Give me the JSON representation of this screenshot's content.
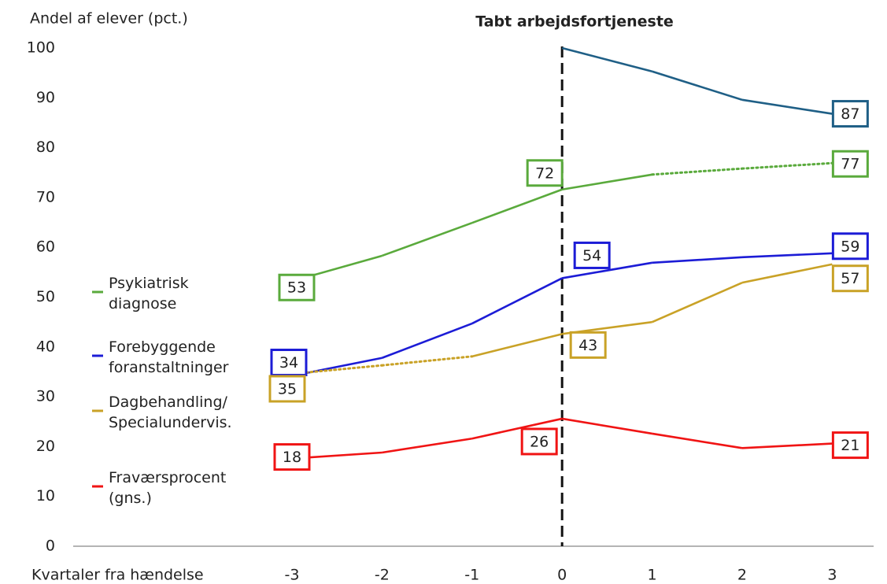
{
  "chart_data": {
    "type": "line",
    "title": "Tabt arbejdsfortjeneste",
    "y_label": "Andel af elever (pct.)",
    "x_label": "Kvartaler fra hændelse",
    "x": [
      -3,
      -2,
      -1,
      0,
      1,
      2,
      3
    ],
    "xlim": [
      -5.43,
      3.46
    ],
    "xticks": [
      -3,
      -2,
      -1,
      0,
      1,
      2,
      3
    ],
    "ylim": [
      0,
      100
    ],
    "yticks": [
      0,
      10,
      20,
      30,
      40,
      50,
      60,
      70,
      80,
      90,
      100
    ],
    "vline_x": 0,
    "series": [
      {
        "color": "#1f5f86",
        "values": [
          null,
          null,
          null,
          100,
          95.3,
          89.6,
          86.8
        ],
        "value_labels": [
          null,
          null,
          null,
          null,
          null,
          null,
          "87"
        ],
        "line_styles": [
          "solid",
          "solid",
          "solid",
          "solid",
          "solid",
          "solid"
        ]
      },
      {
        "name": "Psykiatrisk diagnose",
        "color": "#5aaa3c",
        "values": [
          53.2,
          58.3,
          64.9,
          71.6,
          74.6,
          75.8,
          76.9
        ],
        "value_labels": [
          "53",
          null,
          null,
          "72",
          null,
          null,
          "77"
        ],
        "line_styles": [
          "solid",
          "solid",
          "solid",
          "solid",
          "dotted",
          "dotted"
        ]
      },
      {
        "name": "Forebyggende foranstaltninger",
        "color": "#1c1cd6",
        "values": [
          34.2,
          37.8,
          44.7,
          53.8,
          56.9,
          58.0,
          58.8
        ],
        "value_labels": [
          "34",
          null,
          null,
          "54",
          null,
          null,
          "59"
        ],
        "line_styles": [
          "solid",
          "solid",
          "solid",
          "solid",
          "solid",
          "solid"
        ]
      },
      {
        "name": "Dagbehandling/ Specialundervis.",
        "color": "#c9a227",
        "values": [
          34.6,
          36.3,
          38.1,
          42.6,
          45.0,
          52.9,
          56.6
        ],
        "value_labels": [
          "35",
          null,
          null,
          "43",
          null,
          null,
          "57"
        ],
        "line_styles": [
          "dotted",
          "dotted",
          "solid",
          "solid",
          "solid",
          "solid"
        ]
      },
      {
        "name": "Fraværsprocent (gns.)",
        "color": "#f01414",
        "values": [
          17.6,
          18.8,
          21.6,
          25.6,
          22.6,
          19.7,
          20.6
        ],
        "value_labels": [
          "18",
          null,
          null,
          "26",
          null,
          null,
          "21"
        ],
        "line_styles": [
          "solid",
          "solid",
          "solid",
          "solid",
          "solid",
          "solid"
        ]
      }
    ]
  }
}
